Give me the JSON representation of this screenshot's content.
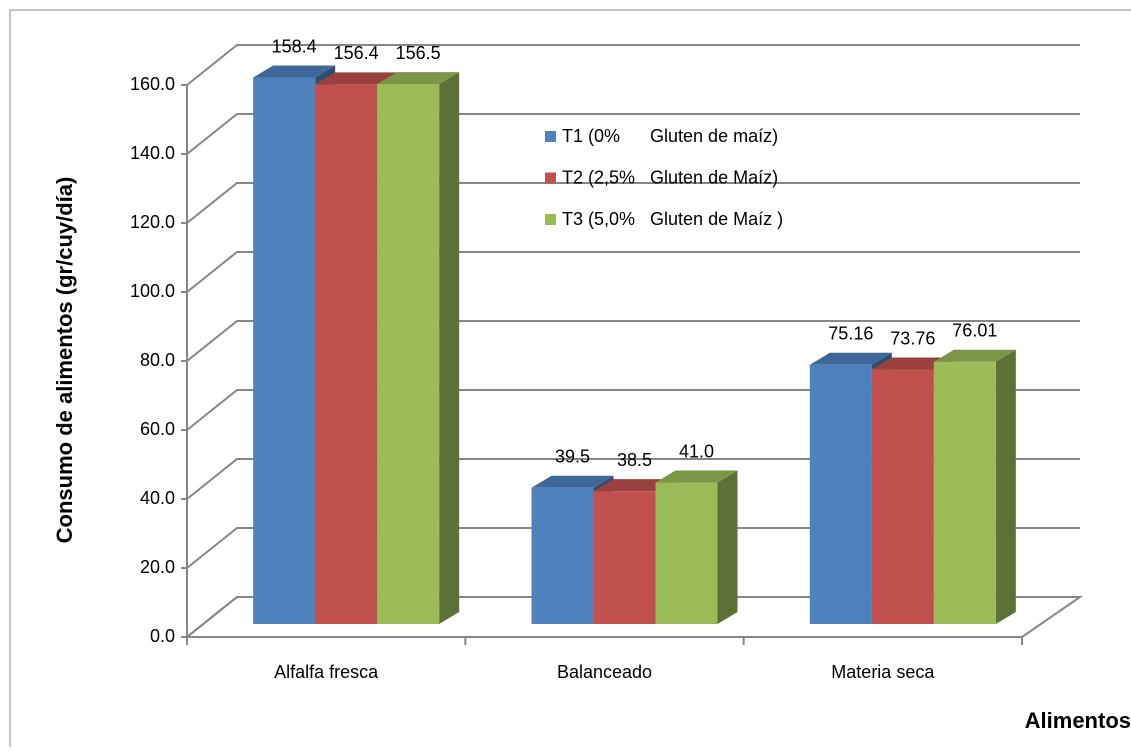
{
  "chart_data": {
    "type": "bar3d",
    "y_label": "Consumo de alimentos (gr/cuy/día)",
    "x_label": "Alimentos",
    "categories": [
      "Alfalfa fresca",
      "Balanceado",
      "Materia seca"
    ],
    "series": [
      {
        "name": "T1 (0%      Gluten de maíz)",
        "color": "#4f81bd",
        "values": [
          158.4,
          39.5,
          75.16
        ],
        "value_labels": [
          "158.4",
          "39.5",
          "75.16"
        ]
      },
      {
        "name": "T2 (2,5%   Gluten de Maíz)",
        "color": "#c0504d",
        "values": [
          156.4,
          38.5,
          73.76
        ],
        "value_labels": [
          "156.4",
          "38.5",
          "73.76"
        ]
      },
      {
        "name": "T3 (5,0%   Gluten de Maíz )",
        "color": "#9bbb59",
        "values": [
          156.5,
          41.0,
          76.01
        ],
        "value_labels": [
          "156.5",
          "41.0",
          "76.01"
        ]
      }
    ],
    "ylim": [
      0,
      160
    ],
    "yticks": [
      {
        "value": 0,
        "label": "0.0"
      },
      {
        "value": 20,
        "label": "20.0"
      },
      {
        "value": 40,
        "label": "40.0"
      },
      {
        "value": 60,
        "label": "60.0"
      },
      {
        "value": 80,
        "label": "80.0"
      },
      {
        "value": 100,
        "label": "100.0"
      },
      {
        "value": 120,
        "label": "120.0"
      },
      {
        "value": 140,
        "label": "140.0"
      },
      {
        "value": 160,
        "label": "160.0"
      }
    ],
    "grid": true,
    "legend": "upper center"
  }
}
